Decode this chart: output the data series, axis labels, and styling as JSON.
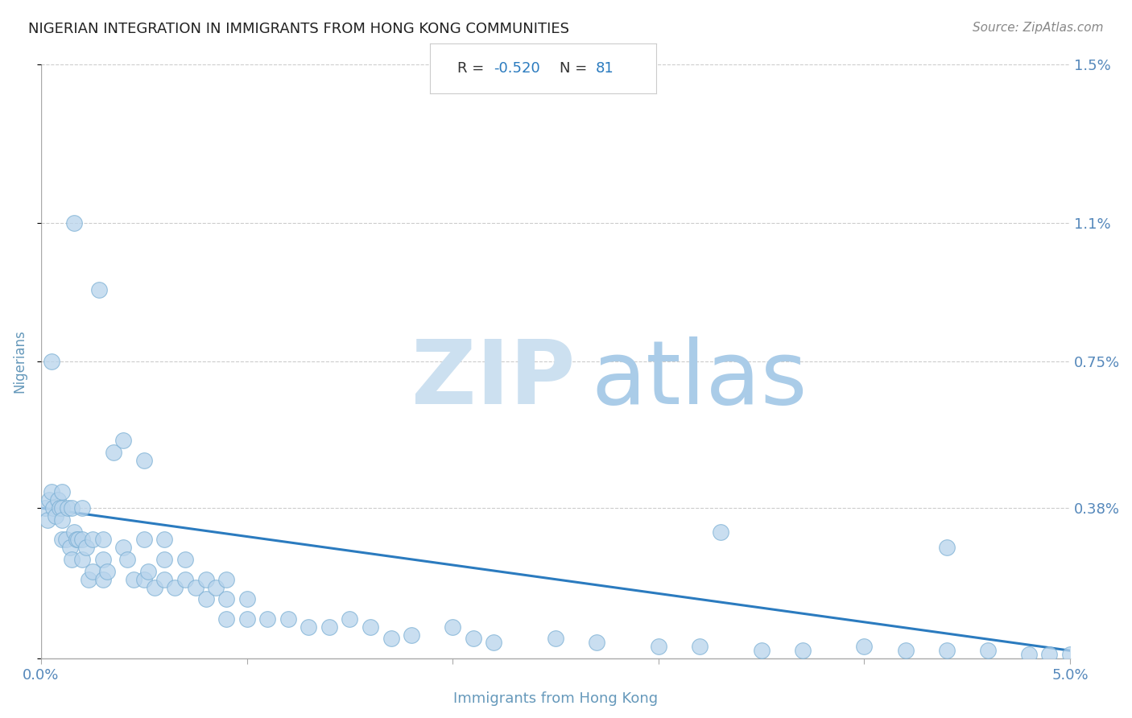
{
  "title": "NIGERIAN INTEGRATION IN IMMIGRANTS FROM HONG KONG COMMUNITIES",
  "source": "Source: ZipAtlas.com",
  "xlabel": "Immigrants from Hong Kong",
  "ylabel": "Nigerians",
  "xlim": [
    0.0,
    0.05
  ],
  "ylim": [
    0.0,
    0.015
  ],
  "xtick_vals": [
    0.0,
    0.01,
    0.02,
    0.03,
    0.04,
    0.05
  ],
  "xticklabels": [
    "0.0%",
    "",
    "",
    "",
    "",
    "5.0%"
  ],
  "ytick_vals": [
    0.0,
    0.0038,
    0.0075,
    0.011,
    0.015
  ],
  "yticklabels_right": [
    "",
    "0.38%",
    "0.75%",
    "1.1%",
    "1.5%"
  ],
  "R_value": "-0.520",
  "N_value": "81",
  "dot_color": "#b8d4ec",
  "dot_edge_color": "#7aafd4",
  "line_color": "#2b7bbf",
  "title_color": "#222222",
  "axis_label_color": "#6699bb",
  "tick_label_color": "#5588bb",
  "source_color": "#888888",
  "grid_color": "#cccccc",
  "box_border_color": "#cccccc",
  "watermark_zip_color": "#cce0f0",
  "watermark_atlas_color": "#aacce8",
  "line_y_at_x0": 0.0038,
  "line_y_at_x005": 0.0002,
  "scatter_x": [
    0.0002,
    0.0003,
    0.0004,
    0.0005,
    0.0006,
    0.0007,
    0.0008,
    0.0009,
    0.001,
    0.001,
    0.001,
    0.001,
    0.0012,
    0.0013,
    0.0014,
    0.0015,
    0.0015,
    0.0016,
    0.0017,
    0.0018,
    0.002,
    0.002,
    0.002,
    0.0022,
    0.0023,
    0.0025,
    0.0025,
    0.003,
    0.003,
    0.003,
    0.0032,
    0.0035,
    0.004,
    0.004,
    0.0042,
    0.0045,
    0.005,
    0.005,
    0.005,
    0.0052,
    0.0055,
    0.006,
    0.006,
    0.006,
    0.0065,
    0.007,
    0.007,
    0.0075,
    0.008,
    0.008,
    0.0085,
    0.009,
    0.009,
    0.009,
    0.01,
    0.01,
    0.011,
    0.012,
    0.013,
    0.014,
    0.015,
    0.016,
    0.017,
    0.018,
    0.02,
    0.021,
    0.022,
    0.025,
    0.027,
    0.03,
    0.032,
    0.035,
    0.037,
    0.04,
    0.042,
    0.044,
    0.046,
    0.048,
    0.049,
    0.05,
    0.0016
  ],
  "scatter_y": [
    0.0038,
    0.0035,
    0.004,
    0.0042,
    0.0038,
    0.0036,
    0.004,
    0.0038,
    0.0038,
    0.003,
    0.0035,
    0.0042,
    0.003,
    0.0038,
    0.0028,
    0.0038,
    0.0025,
    0.0032,
    0.003,
    0.003,
    0.0038,
    0.003,
    0.0025,
    0.0028,
    0.002,
    0.003,
    0.0022,
    0.003,
    0.0025,
    0.002,
    0.0022,
    0.0052,
    0.0055,
    0.0028,
    0.0025,
    0.002,
    0.005,
    0.003,
    0.002,
    0.0022,
    0.0018,
    0.003,
    0.0025,
    0.002,
    0.0018,
    0.0025,
    0.002,
    0.0018,
    0.002,
    0.0015,
    0.0018,
    0.002,
    0.0015,
    0.001,
    0.0015,
    0.001,
    0.001,
    0.001,
    0.0008,
    0.0008,
    0.001,
    0.0008,
    0.0005,
    0.0006,
    0.0008,
    0.0005,
    0.0004,
    0.0005,
    0.0004,
    0.0003,
    0.0003,
    0.0002,
    0.0002,
    0.0003,
    0.0002,
    0.0002,
    0.0002,
    0.0001,
    0.0001,
    0.0001,
    0.011
  ],
  "extra_points_x": [
    0.0028,
    0.0005,
    0.033,
    0.044
  ],
  "extra_points_y": [
    0.0093,
    0.0075,
    0.0032,
    0.0028
  ]
}
